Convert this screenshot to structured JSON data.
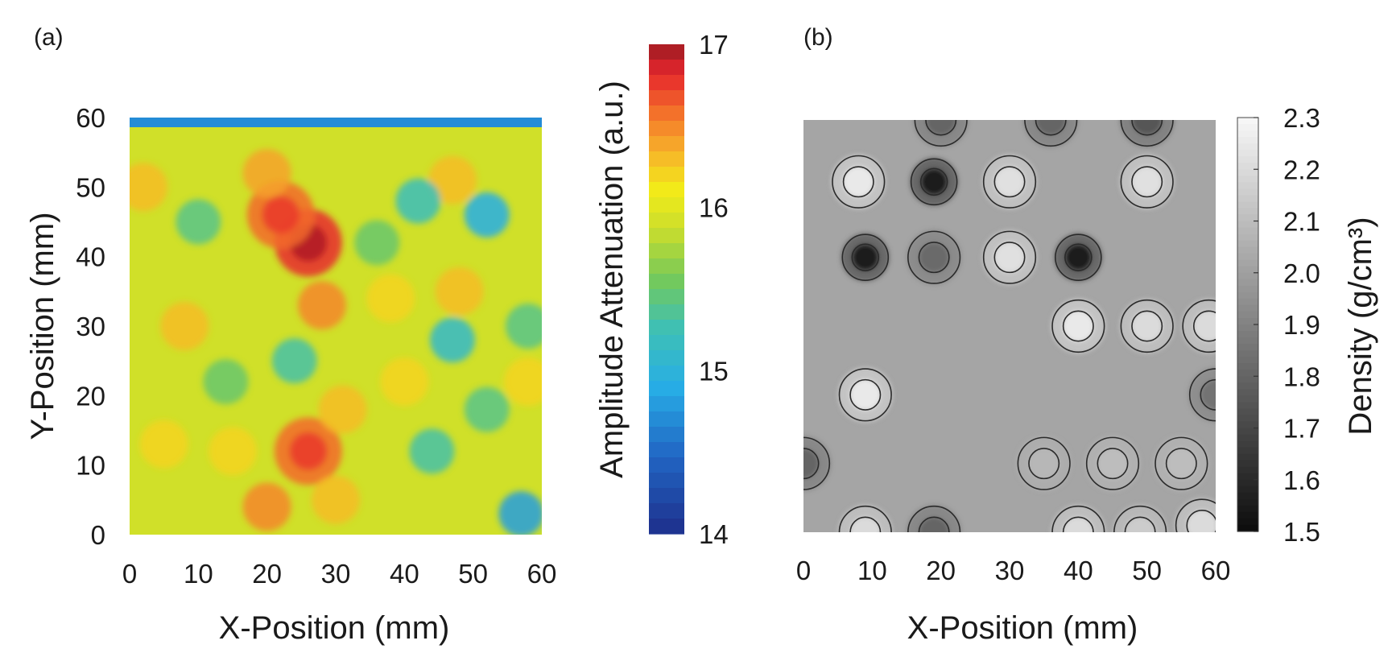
{
  "chart_data": [
    {
      "panel": "(a)",
      "type": "heatmap",
      "xlabel": "X-Position (mm)",
      "ylabel": "Y-Position (mm)",
      "colorbar_label": "Amplitude Attenuation (a.u.)",
      "xlim": [
        0,
        60
      ],
      "ylim": [
        0,
        60
      ],
      "xticks": [
        "0",
        "10",
        "20",
        "30",
        "40",
        "50",
        "60"
      ],
      "yticks": [
        "0",
        "10",
        "20",
        "30",
        "40",
        "50",
        "60"
      ],
      "colorbar_range": [
        14,
        17
      ],
      "colorbar_ticks": [
        "14",
        "15",
        "16",
        "17"
      ],
      "colormap": "jet",
      "background": 15.9,
      "regions": [
        {
          "x": 26,
          "y": 42,
          "value": 16.8
        },
        {
          "x": 22,
          "y": 46,
          "value": 16.6
        },
        {
          "x": 28,
          "y": 33,
          "value": 16.5
        },
        {
          "x": 20,
          "y": 52,
          "value": 16.4
        },
        {
          "x": 26,
          "y": 12,
          "value": 16.6
        },
        {
          "x": 20,
          "y": 4,
          "value": 16.5
        },
        {
          "x": 30,
          "y": 5,
          "value": 16.3
        },
        {
          "x": 31,
          "y": 18,
          "value": 16.3
        },
        {
          "x": 8,
          "y": 30,
          "value": 16.3
        },
        {
          "x": 2,
          "y": 50,
          "value": 16.3
        },
        {
          "x": 5,
          "y": 13,
          "value": 16.2
        },
        {
          "x": 48,
          "y": 35,
          "value": 16.3
        },
        {
          "x": 38,
          "y": 34,
          "value": 16.2
        },
        {
          "x": 40,
          "y": 22,
          "value": 16.2
        },
        {
          "x": 15,
          "y": 12,
          "value": 16.2
        },
        {
          "x": 58,
          "y": 22,
          "value": 16.2
        },
        {
          "x": 47,
          "y": 51,
          "value": 16.3
        },
        {
          "x": 42,
          "y": 48,
          "value": 15.2
        },
        {
          "x": 52,
          "y": 46,
          "value": 14.9
        },
        {
          "x": 47,
          "y": 28,
          "value": 15.1
        },
        {
          "x": 24,
          "y": 25,
          "value": 15.3
        },
        {
          "x": 44,
          "y": 12,
          "value": 15.3
        },
        {
          "x": 57,
          "y": 3,
          "value": 14.8
        },
        {
          "x": 10,
          "y": 45,
          "value": 15.4
        },
        {
          "x": 58,
          "y": 30,
          "value": 15.4
        },
        {
          "x": 36,
          "y": 42,
          "value": 15.5
        },
        {
          "x": 52,
          "y": 18,
          "value": 15.4
        },
        {
          "x": 14,
          "y": 22,
          "value": 15.5
        }
      ],
      "top_band_value": 14.7
    },
    {
      "panel": "(b)",
      "type": "heatmap",
      "xlabel": "X-Position (mm)",
      "ylabel": "",
      "colorbar_label": "Density (g/cm³)",
      "xlim": [
        0,
        60
      ],
      "ylim": [
        0,
        60
      ],
      "xticks": [
        "0",
        "10",
        "20",
        "30",
        "40",
        "50",
        "60"
      ],
      "colorbar_range": [
        1.5,
        2.3
      ],
      "colorbar_ticks": [
        "1.5",
        "1.6",
        "1.7",
        "1.8",
        "1.9",
        "2.0",
        "2.1",
        "2.2",
        "2.3"
      ],
      "colormap": "gray",
      "background": 2.02,
      "regions": [
        {
          "x": 19,
          "y": 51,
          "value": 1.55
        },
        {
          "x": 9,
          "y": 40,
          "value": 1.56
        },
        {
          "x": 40,
          "y": 40,
          "value": 1.56
        },
        {
          "x": 19,
          "y": 40,
          "value": 1.82
        },
        {
          "x": 20,
          "y": 60,
          "value": 1.8
        },
        {
          "x": 36,
          "y": 60,
          "value": 1.8
        },
        {
          "x": 50,
          "y": 60,
          "value": 1.75
        },
        {
          "x": 19,
          "y": 0,
          "value": 1.8
        },
        {
          "x": 0,
          "y": 10,
          "value": 1.8
        },
        {
          "x": 60,
          "y": 20,
          "value": 1.85
        },
        {
          "x": 8,
          "y": 51,
          "value": 2.25
        },
        {
          "x": 30,
          "y": 51,
          "value": 2.22
        },
        {
          "x": 50,
          "y": 51,
          "value": 2.22
        },
        {
          "x": 30,
          "y": 40,
          "value": 2.22
        },
        {
          "x": 40,
          "y": 30,
          "value": 2.25
        },
        {
          "x": 50,
          "y": 30,
          "value": 2.2
        },
        {
          "x": 59,
          "y": 30,
          "value": 2.2
        },
        {
          "x": 9,
          "y": 20,
          "value": 2.25
        },
        {
          "x": 9,
          "y": 0,
          "value": 2.2
        },
        {
          "x": 40,
          "y": 0,
          "value": 2.2
        },
        {
          "x": 49,
          "y": 0,
          "value": 2.15
        },
        {
          "x": 58,
          "y": 1,
          "value": 2.2
        },
        {
          "x": 45,
          "y": 10,
          "value": 2.1
        },
        {
          "x": 35,
          "y": 10,
          "value": 2.08
        },
        {
          "x": 55,
          "y": 10,
          "value": 2.1
        }
      ]
    }
  ]
}
